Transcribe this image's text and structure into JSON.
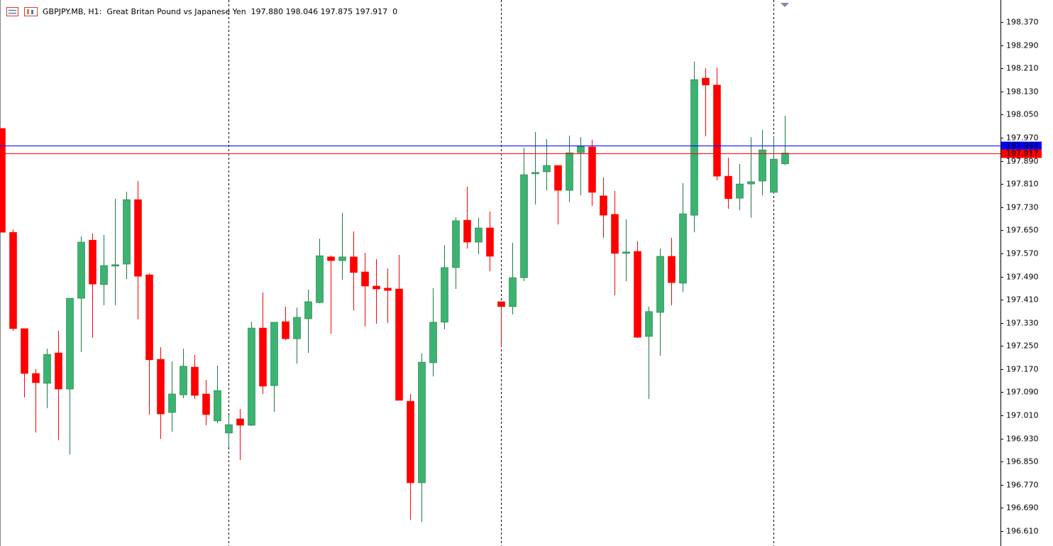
{
  "chart_data": {
    "type": "candlestick",
    "title": "GBPJPY.MB, H1:  Great Britan Pound vs Japanese Yen  197.880 198.046 197.875 197.917  0",
    "up_color": "#3cb371",
    "down_color": "#ff0000",
    "open": [
      198.002,
      197.643,
      197.31,
      197.155,
      197.121,
      197.226,
      197.101,
      197.415,
      197.616,
      197.462,
      197.526,
      197.533,
      197.756,
      197.496,
      197.204,
      197.02,
      197.081,
      197.177,
      197.084,
      196.991,
      196.949,
      196.998,
      196.976,
      197.312,
      197.113,
      197.334,
      197.275,
      197.344,
      197.4,
      197.558,
      197.545,
      197.558,
      197.506,
      197.457,
      197.45,
      197.447,
      197.059,
      196.777,
      197.192,
      197.332,
      197.521,
      197.685,
      197.609,
      197.658,
      197.403,
      197.386,
      197.486,
      197.845,
      197.852,
      197.874,
      197.788,
      197.918,
      197.938,
      197.769,
      197.705,
      197.57,
      197.577,
      197.283,
      197.366,
      197.56,
      197.467,
      197.702,
      198.176,
      198.152,
      197.837,
      197.761,
      197.81,
      197.82,
      197.781,
      197.88
    ],
    "high": [
      198.002,
      197.653,
      197.31,
      197.17,
      197.241,
      197.302,
      197.415,
      197.629,
      197.639,
      197.634,
      197.759,
      197.783,
      197.82,
      197.501,
      197.246,
      197.197,
      197.241,
      197.219,
      197.133,
      197.182,
      197.01,
      197.032,
      197.334,
      197.435,
      197.332,
      197.386,
      197.383,
      197.445,
      197.621,
      197.562,
      197.71,
      197.646,
      197.572,
      197.55,
      197.518,
      197.565,
      197.084,
      197.224,
      197.45,
      197.599,
      197.695,
      197.801,
      197.693,
      197.715,
      197.403,
      197.607,
      197.936,
      197.99,
      197.965,
      197.874,
      197.977,
      197.972,
      197.963,
      197.832,
      197.786,
      197.688,
      197.612,
      197.386,
      197.587,
      197.624,
      197.813,
      198.233,
      198.21,
      198.213,
      197.901,
      197.879,
      197.972,
      197.997,
      197.972,
      198.046
    ],
    "low": [
      197.643,
      197.302,
      197.072,
      196.951,
      197.035,
      196.924,
      196.875,
      197.229,
      197.278,
      197.391,
      197.391,
      197.481,
      197.342,
      197.013,
      196.929,
      196.954,
      197.069,
      197.067,
      196.976,
      196.983,
      196.9,
      196.856,
      196.973,
      197.084,
      197.022,
      197.27,
      197.189,
      197.226,
      197.398,
      197.292,
      197.479,
      197.373,
      197.317,
      197.327,
      197.329,
      197.062,
      196.649,
      196.642,
      197.145,
      197.307,
      197.447,
      197.587,
      197.567,
      197.508,
      197.246,
      197.359,
      197.474,
      197.739,
      197.788,
      197.67,
      197.747,
      197.771,
      197.734,
      197.624,
      197.425,
      197.474,
      197.278,
      197.067,
      197.216,
      197.391,
      197.437,
      197.643,
      197.975,
      197.823,
      197.724,
      197.72,
      197.693,
      197.771,
      197.774,
      197.875
    ],
    "close": [
      197.643,
      197.31,
      197.155,
      197.123,
      197.221,
      197.101,
      197.415,
      197.609,
      197.464,
      197.528,
      197.531,
      197.756,
      197.491,
      197.202,
      197.015,
      197.084,
      197.18,
      197.079,
      197.013,
      197.096,
      196.978,
      196.976,
      197.312,
      197.111,
      197.332,
      197.275,
      197.349,
      197.403,
      197.562,
      197.545,
      197.558,
      197.504,
      197.457,
      197.447,
      197.442,
      197.062,
      196.777,
      197.194,
      197.332,
      197.521,
      197.683,
      197.609,
      197.658,
      197.56,
      197.386,
      197.486,
      197.842,
      197.85,
      197.874,
      197.788,
      197.918,
      197.94,
      197.781,
      197.702,
      197.57,
      197.575,
      197.28,
      197.369,
      197.56,
      197.469,
      197.707,
      198.171,
      198.152,
      197.837,
      197.759,
      197.81,
      197.818,
      197.928,
      197.896,
      197.917
    ],
    "ylim": [
      196.561,
      198.446
    ],
    "yticks": [
      {
        "value": 198.37,
        "label": "198.370"
      },
      {
        "value": 198.29,
        "label": "198.290"
      },
      {
        "value": 198.21,
        "label": "198.210"
      },
      {
        "value": 198.13,
        "label": "198.130"
      },
      {
        "value": 198.05,
        "label": "198.050"
      },
      {
        "value": 197.97,
        "label": "197.970"
      },
      {
        "value": 197.89,
        "label": "197.890"
      },
      {
        "value": 197.81,
        "label": "197.810"
      },
      {
        "value": 197.73,
        "label": "197.730"
      },
      {
        "value": 197.65,
        "label": "197.650"
      },
      {
        "value": 197.57,
        "label": "197.570"
      },
      {
        "value": 197.49,
        "label": "197.490"
      },
      {
        "value": 197.41,
        "label": "197.410"
      },
      {
        "value": 197.33,
        "label": "197.330"
      },
      {
        "value": 197.25,
        "label": "197.250"
      },
      {
        "value": 197.17,
        "label": "197.170"
      },
      {
        "value": 197.09,
        "label": "197.090"
      },
      {
        "value": 197.01,
        "label": "197.010"
      },
      {
        "value": 196.93,
        "label": "196.930"
      },
      {
        "value": 196.85,
        "label": "196.850"
      },
      {
        "value": 196.77,
        "label": "196.770"
      },
      {
        "value": 196.69,
        "label": "196.690"
      },
      {
        "value": 196.61,
        "label": "196.610"
      }
    ],
    "price_lines": [
      {
        "value": 197.944,
        "color": "#0000ff"
      },
      {
        "value": 197.917,
        "color": "#ff0000"
      }
    ],
    "grid": false
  }
}
